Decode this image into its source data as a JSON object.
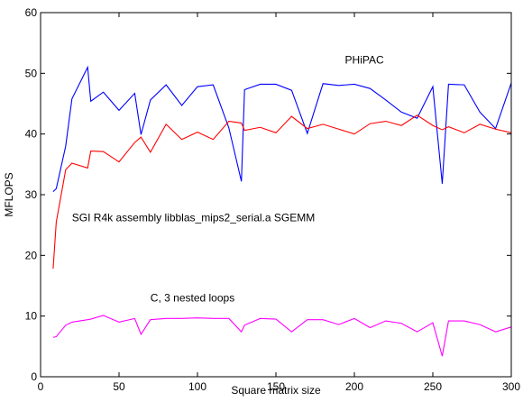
{
  "chart_data": {
    "type": "line",
    "xlabel": "Square matrix size",
    "ylabel": "MFLOPS",
    "xlim": [
      0,
      300
    ],
    "ylim": [
      0,
      60
    ],
    "xticks": [
      0,
      50,
      100,
      150,
      200,
      250,
      300
    ],
    "yticks": [
      0,
      10,
      20,
      30,
      40,
      50,
      60
    ],
    "grid": false,
    "series": [
      {
        "name": "PHiPAC",
        "color": "#0000ff",
        "x": [
          8,
          10,
          16,
          20,
          30,
          32,
          40,
          50,
          60,
          64,
          70,
          80,
          90,
          100,
          110,
          120,
          128,
          130,
          140,
          150,
          160,
          170,
          180,
          190,
          200,
          210,
          220,
          230,
          240,
          250,
          256,
          260,
          270,
          280,
          290,
          300
        ],
        "y": [
          30.5,
          31.0,
          38.0,
          45.8,
          51.0,
          45.4,
          46.9,
          43.9,
          46.7,
          39.9,
          45.6,
          48.1,
          44.7,
          47.8,
          48.1,
          41.0,
          32.2,
          47.3,
          48.2,
          48.2,
          47.2,
          40.1,
          48.3,
          48.0,
          48.2,
          47.5,
          45.6,
          43.6,
          42.6,
          47.8,
          31.8,
          48.2,
          48.1,
          43.6,
          40.9,
          48.4
        ]
      },
      {
        "name": "SGI R4k assembly libblas_mips2_serial.a SGEMM",
        "color": "#ff0000",
        "x": [
          8,
          10,
          16,
          20,
          30,
          32,
          40,
          50,
          60,
          64,
          70,
          80,
          90,
          100,
          110,
          120,
          128,
          130,
          140,
          150,
          160,
          170,
          180,
          190,
          200,
          210,
          220,
          230,
          240,
          250,
          256,
          260,
          270,
          280,
          290,
          300
        ],
        "y": [
          17.8,
          25.5,
          34.1,
          35.2,
          34.4,
          37.2,
          37.1,
          35.4,
          38.6,
          39.5,
          37.0,
          41.6,
          39.1,
          40.3,
          39.1,
          42.1,
          41.8,
          40.6,
          41.1,
          40.2,
          42.9,
          40.9,
          41.6,
          40.8,
          40.0,
          41.7,
          42.1,
          41.4,
          43.1,
          41.4,
          40.7,
          41.2,
          40.2,
          41.6,
          40.8,
          40.2
        ]
      },
      {
        "name": "C, 3 nested loops",
        "color": "#ff00ff",
        "x": [
          8,
          10,
          16,
          20,
          30,
          32,
          40,
          50,
          60,
          64,
          70,
          80,
          90,
          100,
          110,
          120,
          128,
          130,
          140,
          150,
          160,
          170,
          180,
          190,
          200,
          210,
          220,
          230,
          240,
          250,
          256,
          260,
          270,
          280,
          290,
          300
        ],
        "y": [
          6.5,
          6.6,
          8.5,
          9.0,
          9.4,
          9.5,
          10.1,
          9.0,
          9.6,
          7.0,
          9.4,
          9.6,
          9.6,
          9.7,
          9.6,
          9.6,
          7.4,
          8.5,
          9.6,
          9.5,
          7.4,
          9.4,
          9.4,
          8.6,
          9.6,
          8.1,
          9.2,
          8.8,
          7.4,
          8.9,
          3.4,
          9.2,
          9.2,
          8.6,
          7.4,
          8.2
        ]
      }
    ],
    "annotations": [
      {
        "text": "PHiPAC",
        "x": 194,
        "y": 51.6
      },
      {
        "text": "SGI R4k assembly libblas_mips2_serial.a SGEMM",
        "x": 20,
        "y": 25.6
      },
      {
        "text": "C, 3 nested loops",
        "x": 70,
        "y": 12.4
      }
    ]
  }
}
